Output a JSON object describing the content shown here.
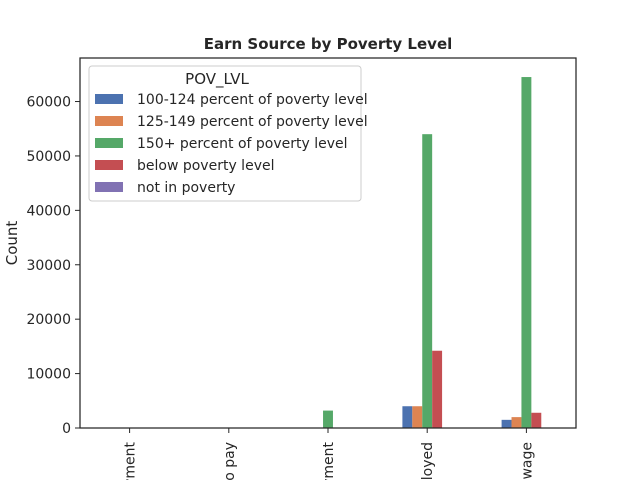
{
  "chart_data": {
    "type": "bar",
    "title": "Earn Source by Poverty Level",
    "xlabel": "",
    "ylabel": "Count",
    "ylim": [
      0,
      68000
    ],
    "yticks": [
      "0",
      "10000",
      "20000",
      "30000",
      "40000",
      "50000",
      "60000"
    ],
    "grid": false,
    "categories": [
      "yment",
      "o pay",
      "yment",
      "loyed",
      "wage"
    ],
    "legend": {
      "title": "POV_LVL",
      "placement": "top-left"
    },
    "series": [
      {
        "name": "100-124 percent of poverty level",
        "color": "#4c72b0",
        "values": [
          0,
          0,
          0,
          4000,
          1500
        ]
      },
      {
        "name": "125-149 percent of poverty level",
        "color": "#dd8452",
        "values": [
          0,
          0,
          0,
          4000,
          2000
        ]
      },
      {
        "name": "150+ percent of poverty level",
        "color": "#55a868",
        "values": [
          0,
          0,
          3200,
          54000,
          64500
        ]
      },
      {
        "name": "below poverty level",
        "color": "#c44e52",
        "values": [
          0,
          0,
          0,
          14200,
          2800
        ]
      },
      {
        "name": "not in poverty",
        "color": "#8172b3",
        "values": [
          0,
          0,
          0,
          0,
          0
        ]
      }
    ]
  }
}
